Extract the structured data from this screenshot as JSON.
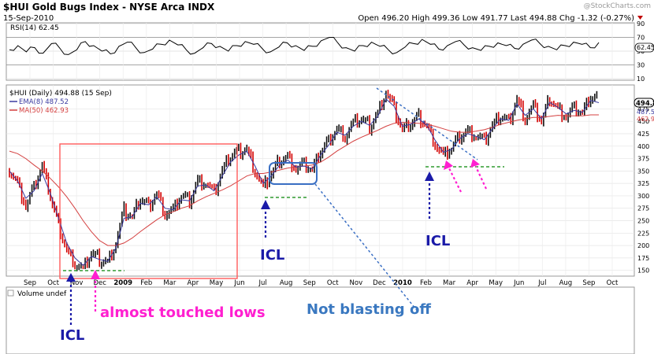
{
  "header": {
    "symbol_title": "$HUI Gold Bugs Index - NYSE Arca INDX",
    "date": "15-Sep-2010",
    "quote": "Open 496.20  High 499.36  Low 491.77  Last 494.88  Chg -1.32 (-0.27%)",
    "watermark": "@StockCharts.com"
  },
  "rsi_panel": {
    "label": "RSI(14) 62.45",
    "ticks": [
      "90",
      "70",
      "50",
      "30",
      "10"
    ],
    "current_badge": "62.45"
  },
  "price_panel": {
    "legend": [
      "$HUI (Daily) 494.88 (15 Sep)",
      "EMA(8) 487.52",
      "MA(50) 462.93"
    ],
    "right_badges": [
      "494.88",
      "487.52",
      "462.93"
    ]
  },
  "volume_panel": {
    "label": "Volume undef"
  },
  "annotations": {
    "icl_1": "ICL",
    "icl_2": "ICL",
    "icl_3": "ICL",
    "pink_note": "almost touched lows",
    "blue_note": "Not blasting off"
  },
  "colors": {
    "price_bar_up": "#111111",
    "price_bar_down": "#d40000",
    "ema": "#3a3aa0",
    "ma50": "#d44040",
    "annotation_blue": "#1a1aa8",
    "annotation_pink": "#ff1fd0",
    "annotation_green": "#2f9a2f",
    "callout_blue": "#3a6fc4",
    "box_red": "#ff5a5a",
    "text_blue": "#3a78c0"
  },
  "chart_data": [
    {
      "type": "line",
      "title": "RSI(14) 62.45",
      "ylim": [
        10,
        90
      ],
      "y_ticks": [
        90,
        70,
        50,
        30,
        10
      ],
      "series": [
        {
          "name": "RSI(14)",
          "last": 62.45,
          "values": [
            52,
            58,
            49,
            55,
            47,
            61,
            54,
            45,
            52,
            64,
            58,
            50,
            46,
            57,
            63,
            55,
            48,
            53,
            60,
            66,
            59,
            52,
            47,
            55,
            61,
            57,
            50,
            58,
            64,
            60,
            54,
            49,
            56,
            62,
            58,
            51,
            57,
            65,
            70,
            62,
            55,
            50,
            58,
            63,
            57,
            52,
            48,
            56,
            61,
            67,
            60,
            53,
            58,
            64,
            59,
            55,
            51,
            57,
            62,
            58,
            54,
            60,
            66,
            61,
            57,
            52,
            58,
            63,
            60,
            55,
            62.45
          ]
        }
      ]
    },
    {
      "type": "line",
      "title": "$HUI (Daily) 494.88 (15 Sep)",
      "x_tick_labels": [
        "Sep",
        "Oct",
        "Nov",
        "Dec",
        "2009",
        "Feb",
        "Mar",
        "Apr",
        "May",
        "Jun",
        "Jul",
        "Aug",
        "Sep",
        "Oct",
        "Nov",
        "Dec",
        "2010",
        "Feb",
        "Mar",
        "Apr",
        "May",
        "Jun",
        "Jul",
        "Aug",
        "Sep",
        "Oct"
      ],
      "y_ticks": [
        150,
        175,
        200,
        225,
        250,
        275,
        300,
        325,
        350,
        375,
        400,
        425,
        450,
        475
      ],
      "ylim": [
        140,
        520
      ],
      "series": [
        {
          "name": "$HUI",
          "last": 494.88,
          "values": [
            352,
            325,
            280,
            315,
            360,
            300,
            240,
            190,
            165,
            150,
            185,
            172,
            165,
            205,
            270,
            255,
            295,
            280,
            305,
            265,
            270,
            300,
            290,
            330,
            325,
            305,
            350,
            380,
            390,
            395,
            350,
            315,
            345,
            370,
            378,
            355,
            362,
            350,
            390,
            410,
            435,
            420,
            445,
            455,
            440,
            465,
            510,
            475,
            430,
            445,
            460,
            440,
            405,
            380,
            395,
            420,
            430,
            420,
            410,
            440,
            460,
            450,
            495,
            455,
            480,
            450,
            495,
            475,
            460,
            475,
            465,
            500,
            494.88
          ]
        },
        {
          "name": "EMA(8)",
          "last": 487.52,
          "values": [
            350,
            330,
            295,
            310,
            345,
            305,
            255,
            205,
            175,
            160,
            178,
            172,
            168,
            195,
            255,
            258,
            285,
            282,
            298,
            275,
            272,
            292,
            290,
            320,
            322,
            310,
            340,
            368,
            382,
            390,
            360,
            325,
            340,
            362,
            372,
            358,
            360,
            354,
            382,
            402,
            428,
            422,
            440,
            450,
            442,
            460,
            495,
            480,
            440,
            444,
            455,
            442,
            412,
            388,
            393,
            415,
            425,
            420,
            413,
            435,
            455,
            452,
            485,
            462,
            475,
            455,
            488,
            478,
            465,
            472,
            468,
            492,
            487.52
          ]
        },
        {
          "name": "MA(50)",
          "last": 462.93,
          "values": [
            390,
            385,
            375,
            362,
            350,
            335,
            318,
            298,
            275,
            250,
            228,
            210,
            200,
            200,
            205,
            215,
            228,
            240,
            252,
            262,
            268,
            275,
            280,
            290,
            298,
            305,
            312,
            320,
            330,
            340,
            345,
            345,
            348,
            352,
            356,
            358,
            360,
            362,
            368,
            378,
            390,
            400,
            410,
            418,
            425,
            432,
            440,
            446,
            448,
            447,
            446,
            444,
            440,
            435,
            430,
            428,
            428,
            430,
            433,
            438,
            444,
            448,
            452,
            455,
            458,
            458,
            460,
            462,
            461,
            461,
            461,
            463,
            462.93
          ]
        }
      ]
    },
    {
      "type": "bar",
      "title": "Volume undef",
      "values": []
    }
  ]
}
